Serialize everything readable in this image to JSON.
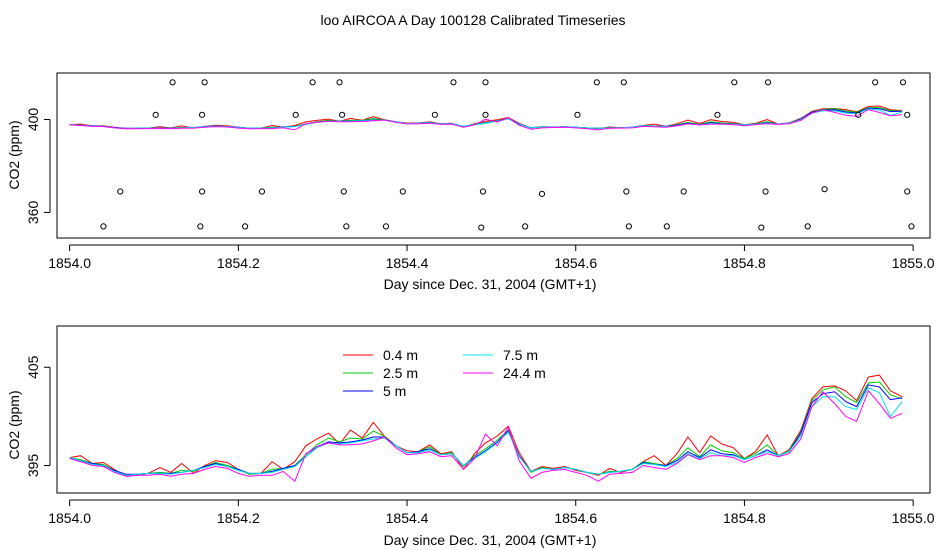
{
  "title": "loo AIRCOA A  Day 100128  Calibrated Timeseries",
  "colors": {
    "c0_4": "#ff0000",
    "c2_5": "#00cc00",
    "c5": "#0000ff",
    "c7_5": "#00e5e5",
    "c24_4": "#ff00ff",
    "axis": "#000000"
  },
  "chart_data": [
    {
      "type": "scatter+line",
      "xlabel": "Day since Dec. 31, 2004 (GMT+1)",
      "ylabel": "CO2 (ppm)",
      "xlim": [
        1853.985,
        1855.02
      ],
      "ylim": [
        349,
        420
      ],
      "xticks": [
        1854.0,
        1854.2,
        1854.4,
        1854.6,
        1854.8,
        1855.0
      ],
      "xtick_labels": [
        "1854.0",
        "1854.2",
        "1854.4",
        "1854.6",
        "1854.8",
        "1855.0"
      ],
      "yticks": [
        360,
        400
      ],
      "ytick_labels": [
        "360",
        "400"
      ],
      "grid": false,
      "points": [
        [
          1854.122,
          416
        ],
        [
          1854.16,
          416
        ],
        [
          1854.288,
          416
        ],
        [
          1854.32,
          416
        ],
        [
          1854.455,
          416
        ],
        [
          1854.493,
          416
        ],
        [
          1854.625,
          416
        ],
        [
          1854.657,
          416
        ],
        [
          1854.788,
          416
        ],
        [
          1854.828,
          416
        ],
        [
          1854.955,
          416
        ],
        [
          1854.988,
          416
        ],
        [
          1854.102,
          402
        ],
        [
          1854.157,
          402
        ],
        [
          1854.268,
          402
        ],
        [
          1854.323,
          402
        ],
        [
          1854.433,
          402
        ],
        [
          1854.493,
          402
        ],
        [
          1854.602,
          402
        ],
        [
          1854.768,
          402
        ],
        [
          1854.935,
          402
        ],
        [
          1854.993,
          402
        ],
        [
          1854.06,
          369
        ],
        [
          1854.157,
          369
        ],
        [
          1854.228,
          369
        ],
        [
          1854.325,
          369
        ],
        [
          1854.395,
          369
        ],
        [
          1854.49,
          369
        ],
        [
          1854.56,
          368
        ],
        [
          1854.66,
          369
        ],
        [
          1854.728,
          369
        ],
        [
          1854.825,
          369
        ],
        [
          1854.895,
          370
        ],
        [
          1854.993,
          369
        ],
        [
          1854.04,
          354
        ],
        [
          1854.155,
          354
        ],
        [
          1854.208,
          354
        ],
        [
          1854.328,
          354
        ],
        [
          1854.375,
          354
        ],
        [
          1854.488,
          353.5
        ],
        [
          1854.54,
          354
        ],
        [
          1854.663,
          354
        ],
        [
          1854.708,
          354
        ],
        [
          1854.82,
          353.5
        ],
        [
          1854.875,
          354
        ],
        [
          1854.998,
          354
        ]
      ],
      "x": [
        1854.0,
        1854.013,
        1854.027,
        1854.04,
        1854.053,
        1854.067,
        1854.08,
        1854.093,
        1854.107,
        1854.12,
        1854.133,
        1854.147,
        1854.16,
        1854.173,
        1854.187,
        1854.2,
        1854.213,
        1854.227,
        1854.24,
        1854.253,
        1854.267,
        1854.28,
        1854.293,
        1854.307,
        1854.32,
        1854.333,
        1854.347,
        1854.36,
        1854.373,
        1854.387,
        1854.4,
        1854.413,
        1854.427,
        1854.44,
        1854.453,
        1854.467,
        1854.48,
        1854.493,
        1854.507,
        1854.52,
        1854.533,
        1854.547,
        1854.56,
        1854.573,
        1854.587,
        1854.6,
        1854.613,
        1854.627,
        1854.64,
        1854.653,
        1854.667,
        1854.68,
        1854.693,
        1854.707,
        1854.72,
        1854.733,
        1854.747,
        1854.76,
        1854.773,
        1854.787,
        1854.8,
        1854.813,
        1854.827,
        1854.84,
        1854.853,
        1854.867,
        1854.88,
        1854.893,
        1854.907,
        1854.92,
        1854.933,
        1854.947,
        1854.96,
        1854.973,
        1854.987
      ],
      "series": [
        {
          "name": "0.4 m",
          "color": "#ff0000",
          "values": [
            395.8,
            396.0,
            395.2,
            395.3,
            394.6,
            393.9,
            394.0,
            394.2,
            394.8,
            394.3,
            395.2,
            394.2,
            395.0,
            395.5,
            395.3,
            394.6,
            394.1,
            394.2,
            395.4,
            394.6,
            395.4,
            397.0,
            397.7,
            398.3,
            397.2,
            398.6,
            397.8,
            399.4,
            398.0,
            397.0,
            396.5,
            396.4,
            397.1,
            396.2,
            396.4,
            394.6,
            396.2,
            397.3,
            398.0,
            399.0,
            396.3,
            394.4,
            394.9,
            394.7,
            394.9,
            394.5,
            394.3,
            394.0,
            394.7,
            394.3,
            394.6,
            395.4,
            396.0,
            395.0,
            396.2,
            397.9,
            396.3,
            398.0,
            397.2,
            396.8,
            395.7,
            396.4,
            398.1,
            396.0,
            396.6,
            398.6,
            401.8,
            403.0,
            403.1,
            402.6,
            401.6,
            404.0,
            404.2,
            402.6,
            402.0
          ]
        },
        {
          "name": "2.5 m",
          "color": "#00cc00",
          "values": [
            395.8,
            395.6,
            395.2,
            395.1,
            394.5,
            394.0,
            394.1,
            394.2,
            394.3,
            394.2,
            394.5,
            394.4,
            394.9,
            395.3,
            395.0,
            394.6,
            394.1,
            394.2,
            394.6,
            394.7,
            395.0,
            396.1,
            397.1,
            397.8,
            397.4,
            397.8,
            397.7,
            398.5,
            398.0,
            397.0,
            396.3,
            396.4,
            396.9,
            396.1,
            396.3,
            394.9,
            396.0,
            396.7,
            397.6,
            398.6,
            396.0,
            394.3,
            394.8,
            394.6,
            394.8,
            394.6,
            394.3,
            394.1,
            394.4,
            394.4,
            394.6,
            395.4,
            395.2,
            395.0,
            395.7,
            396.8,
            395.9,
            397.1,
            396.5,
            396.3,
            395.7,
            396.2,
            397.1,
            396.0,
            396.5,
            398.4,
            401.6,
            402.7,
            403.0,
            402.0,
            401.4,
            403.4,
            403.5,
            402.2,
            401.8
          ]
        },
        {
          "name": "5 m",
          "color": "#0000ff",
          "values": [
            395.8,
            395.5,
            395.2,
            395.0,
            394.5,
            394.1,
            394.1,
            394.2,
            394.2,
            394.2,
            394.3,
            394.5,
            394.9,
            395.2,
            394.9,
            394.6,
            394.2,
            394.2,
            394.4,
            394.7,
            395.0,
            395.9,
            396.9,
            397.4,
            397.3,
            397.4,
            397.6,
            397.9,
            397.9,
            397.0,
            396.3,
            396.4,
            396.7,
            396.1,
            396.2,
            395.0,
            395.8,
            396.5,
            397.4,
            398.5,
            396.0,
            394.4,
            394.7,
            394.6,
            394.8,
            394.6,
            394.3,
            394.1,
            394.3,
            394.4,
            394.6,
            395.3,
            395.1,
            395.0,
            395.5,
            396.4,
            395.8,
            396.6,
            396.2,
            396.1,
            395.6,
            396.0,
            396.6,
            396.0,
            396.4,
            398.3,
            401.4,
            402.3,
            402.5,
            401.5,
            401.0,
            403.2,
            403.0,
            401.7,
            401.9
          ]
        },
        {
          "name": "7.5 m",
          "color": "#00e5e5",
          "values": [
            395.8,
            395.5,
            395.1,
            395.0,
            394.4,
            394.0,
            394.1,
            394.2,
            394.2,
            394.1,
            394.3,
            394.5,
            394.8,
            395.1,
            394.9,
            394.5,
            394.2,
            394.2,
            394.3,
            394.6,
            394.9,
            395.9,
            396.8,
            397.3,
            397.2,
            397.3,
            397.5,
            397.7,
            397.8,
            397.0,
            396.3,
            396.3,
            396.6,
            396.1,
            396.2,
            395.0,
            395.7,
            396.4,
            397.3,
            398.4,
            395.9,
            394.4,
            394.7,
            394.6,
            394.8,
            394.6,
            394.3,
            394.1,
            394.3,
            394.4,
            394.6,
            395.2,
            395.1,
            394.9,
            395.3,
            396.2,
            395.7,
            396.3,
            396.0,
            396.0,
            395.6,
            396.0,
            396.4,
            396.0,
            396.4,
            398.0,
            401.0,
            402.0,
            402.0,
            401.0,
            400.7,
            402.9,
            402.4,
            400.0,
            401.5
          ]
        },
        {
          "name": "24.4 m",
          "color": "#ff00ff",
          "values": [
            395.7,
            395.4,
            395.0,
            394.9,
            394.3,
            393.9,
            394.0,
            394.0,
            394.1,
            393.9,
            394.1,
            394.2,
            394.6,
            394.9,
            394.7,
            394.2,
            393.9,
            394.0,
            394.0,
            394.4,
            393.4,
            396.2,
            396.9,
            397.3,
            397.1,
            397.1,
            397.2,
            397.5,
            397.9,
            396.8,
            396.1,
            396.2,
            396.4,
            395.9,
            396.0,
            394.6,
            395.7,
            398.2,
            397.0,
            398.9,
            395.5,
            393.7,
            394.3,
            394.5,
            394.6,
            394.3,
            394.0,
            393.4,
            394.1,
            394.2,
            394.3,
            395.0,
            394.8,
            394.6,
            395.2,
            396.1,
            395.6,
            396.0,
            396.0,
            395.8,
            395.3,
            395.8,
            396.2,
            395.9,
            396.2,
            397.7,
            401.0,
            402.5,
            401.3,
            400.0,
            399.5,
            402.6,
            401.3,
            399.8,
            400.3
          ]
        }
      ],
      "panel1_offset_note": ""
    },
    {
      "type": "line",
      "xlabel": "Day since Dec. 31, 2004 (GMT+1)",
      "ylabel": "CO2 (ppm)",
      "xlim": [
        1853.985,
        1855.02
      ],
      "ylim": [
        392.2,
        409.2
      ],
      "xticks": [
        1854.0,
        1854.2,
        1854.4,
        1854.6,
        1854.8,
        1855.0
      ],
      "xtick_labels": [
        "1854.0",
        "1854.2",
        "1854.4",
        "1854.6",
        "1854.8",
        "1855.0"
      ],
      "yticks": [
        395,
        405
      ],
      "ytick_labels": [
        "395",
        "405"
      ],
      "legend": {
        "placement": "top-left",
        "entries": [
          "0.4 m",
          "2.5 m",
          "5 m",
          "7.5 m",
          "24.4 m"
        ]
      },
      "grid": false
    }
  ]
}
